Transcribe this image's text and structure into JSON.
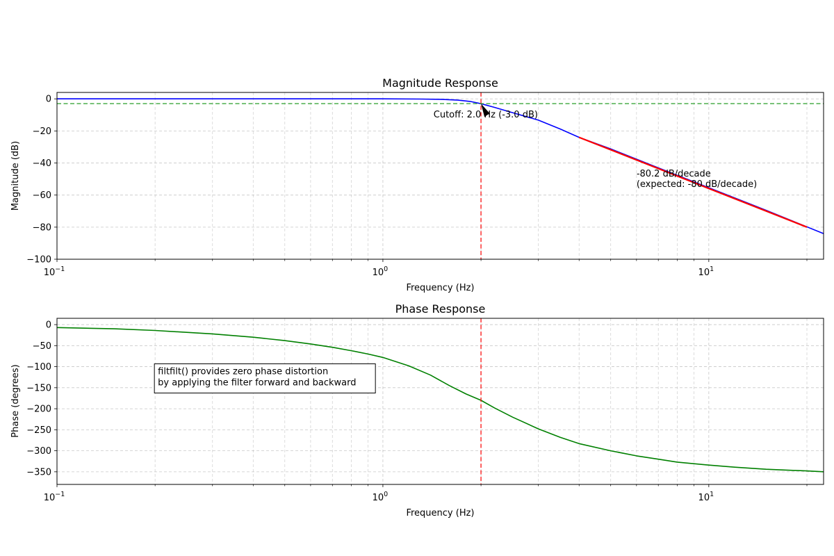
{
  "chart_data": [
    {
      "type": "line",
      "title": "Magnitude Response",
      "xlabel": "Frequency (Hz)",
      "ylabel": "Magnitude (dB)",
      "xscale": "log",
      "xlim": [
        0.1,
        22.5
      ],
      "ylim": [
        -100,
        4
      ],
      "grid": true,
      "x_ticks": [
        {
          "value": 0.1,
          "base": "10",
          "exp": "−1"
        },
        {
          "value": 1,
          "base": "10",
          "exp": "0"
        },
        {
          "value": 10,
          "base": "10",
          "exp": "1"
        }
      ],
      "y_ticks": [
        {
          "value": 0,
          "label": "0"
        },
        {
          "value": -20,
          "label": "−20"
        },
        {
          "value": -40,
          "label": "−40"
        },
        {
          "value": -60,
          "label": "−60"
        },
        {
          "value": -80,
          "label": "−80"
        },
        {
          "value": -100,
          "label": "−100"
        }
      ],
      "series": [
        {
          "color": "#0000ff",
          "x": [
            0.1,
            0.3,
            0.6,
            1.0,
            1.3,
            1.5,
            1.7,
            1.85,
            2.0,
            2.2,
            2.5,
            3.0,
            3.5,
            4.0,
            5.0,
            7.0,
            10.0,
            15.0,
            22.5
          ],
          "y": [
            0.0,
            0.0,
            0.0,
            0.0,
            -0.1,
            -0.3,
            -0.8,
            -1.6,
            -3.0,
            -5.3,
            -8.6,
            -13.3,
            -18.8,
            -24.0,
            -31.2,
            -43.0,
            -55.4,
            -69.5,
            -84.0
          ]
        },
        {
          "color": "#ff0000",
          "x": [
            4.0,
            20.0
          ],
          "y": [
            -24.0,
            -80.0
          ]
        }
      ],
      "hlines": [
        {
          "y": -3.0,
          "color": "#2ca02c",
          "style": "dashed"
        }
      ],
      "vlines": [
        {
          "x": 2.0,
          "color": "#ff0000",
          "style": "dashed"
        }
      ],
      "annotations": [
        {
          "text": "Cutoff: 2.0 Hz (-3.0 dB)",
          "x": 1.43,
          "y": -11.5,
          "arrow_to": [
            2.0,
            -3.0
          ]
        },
        {
          "lines": [
            "-80.2 dB/decade",
            "(expected: -80 dB/decade)"
          ],
          "x": 6.0,
          "y": -48.5
        }
      ]
    },
    {
      "type": "line",
      "title": "Phase Response",
      "xlabel": "Frequency (Hz)",
      "ylabel": "Phase (degrees)",
      "xscale": "log",
      "xlim": [
        0.1,
        22.5
      ],
      "ylim": [
        -380,
        15
      ],
      "grid": true,
      "x_ticks": [
        {
          "value": 0.1,
          "base": "10",
          "exp": "−1"
        },
        {
          "value": 1,
          "base": "10",
          "exp": "0"
        },
        {
          "value": 10,
          "base": "10",
          "exp": "1"
        }
      ],
      "y_ticks": [
        {
          "value": 0,
          "label": "0"
        },
        {
          "value": -50,
          "label": "−50"
        },
        {
          "value": -100,
          "label": "−100"
        },
        {
          "value": -150,
          "label": "−150"
        },
        {
          "value": -200,
          "label": "−200"
        },
        {
          "value": -250,
          "label": "−250"
        },
        {
          "value": -300,
          "label": "−300"
        },
        {
          "value": -350,
          "label": "−350"
        }
      ],
      "series": [
        {
          "color": "#008000",
          "x": [
            0.1,
            0.15,
            0.2,
            0.3,
            0.4,
            0.5,
            0.6,
            0.7,
            0.8,
            0.9,
            1.0,
            1.2,
            1.4,
            1.6,
            1.8,
            2.0,
            2.2,
            2.5,
            3.0,
            3.5,
            4.0,
            5.0,
            6.0,
            7.0,
            8.0,
            10.0,
            12.0,
            15.0,
            20.0,
            22.5
          ],
          "y": [
            -7,
            -10,
            -14,
            -22,
            -30,
            -38,
            -46,
            -54,
            -62,
            -70,
            -78,
            -98,
            -120,
            -145,
            -165,
            -180,
            -198,
            -220,
            -248,
            -268,
            -283,
            -300,
            -312,
            -320,
            -327,
            -334,
            -339,
            -344,
            -348,
            -350
          ]
        }
      ],
      "vlines": [
        {
          "x": 2.0,
          "color": "#ff0000",
          "style": "dashed"
        }
      ],
      "annotations": [
        {
          "lines": [
            "filtfilt() provides zero phase distortion",
            "by applying the filter forward and backward"
          ],
          "x": 0.2,
          "y": -118,
          "boxed": true
        }
      ]
    }
  ]
}
